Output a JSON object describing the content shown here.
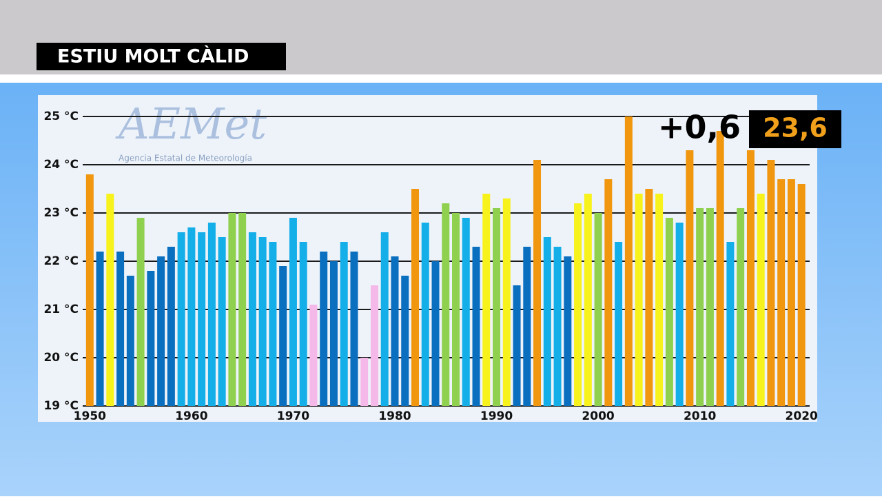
{
  "header": {
    "title": "ESTIU MOLT CÀLID"
  },
  "logo": {
    "name": "AEMet",
    "subtitle": "Agencia Estatal de Meteorología"
  },
  "chart_data": {
    "type": "bar",
    "annotations": [
      "+0,6",
      "23,6"
    ],
    "x": [
      1950,
      1951,
      1952,
      1953,
      1954,
      1955,
      1956,
      1957,
      1958,
      1959,
      1960,
      1961,
      1962,
      1963,
      1964,
      1965,
      1966,
      1967,
      1968,
      1969,
      1970,
      1971,
      1972,
      1973,
      1974,
      1975,
      1976,
      1977,
      1978,
      1979,
      1980,
      1981,
      1982,
      1983,
      1984,
      1985,
      1986,
      1987,
      1988,
      1989,
      1990,
      1991,
      1992,
      1993,
      1994,
      1995,
      1996,
      1997,
      1998,
      1999,
      2000,
      2001,
      2002,
      2003,
      2004,
      2005,
      2006,
      2007,
      2008,
      2009,
      2010,
      2011,
      2012,
      2013,
      2014,
      2015,
      2016,
      2017,
      2018,
      2019,
      2020
    ],
    "values": [
      23.8,
      22.2,
      23.4,
      22.2,
      21.7,
      22.9,
      21.8,
      22.1,
      22.3,
      22.6,
      22.7,
      22.6,
      22.8,
      22.5,
      23.0,
      23.0,
      22.6,
      22.5,
      22.4,
      21.9,
      22.9,
      22.4,
      21.1,
      22.2,
      22.0,
      22.4,
      22.2,
      20.0,
      21.5,
      22.6,
      22.1,
      21.7,
      23.5,
      22.8,
      22.0,
      23.2,
      23.0,
      22.9,
      22.3,
      23.4,
      23.1,
      23.3,
      21.5,
      22.3,
      24.1,
      22.5,
      22.3,
      22.1,
      23.2,
      23.4,
      23.0,
      23.7,
      22.4,
      25.0,
      23.4,
      23.5,
      23.4,
      22.9,
      22.8,
      24.3,
      23.1,
      23.1,
      24.7,
      22.4,
      23.1,
      24.3,
      23.4,
      24.1,
      23.7,
      23.7,
      23.6
    ],
    "colors": [
      "#f0960f",
      "#0b6fbf",
      "#f7f21c",
      "#0b6fbf",
      "#0b6fbf",
      "#8fd14f",
      "#0b6fbf",
      "#0b6fbf",
      "#0b6fbf",
      "#14aee8",
      "#14aee8",
      "#14aee8",
      "#14aee8",
      "#14aee8",
      "#8fd14f",
      "#8fd14f",
      "#14aee8",
      "#14aee8",
      "#14aee8",
      "#0b6fbf",
      "#14aee8",
      "#14aee8",
      "#f4b9e8",
      "#0b6fbf",
      "#0b6fbf",
      "#14aee8",
      "#0b6fbf",
      "#f4b9e8",
      "#f4b9e8",
      "#14aee8",
      "#0b6fbf",
      "#0b6fbf",
      "#f0960f",
      "#14aee8",
      "#0b6fbf",
      "#8fd14f",
      "#8fd14f",
      "#14aee8",
      "#0b6fbf",
      "#f7f21c",
      "#8fd14f",
      "#f7f21c",
      "#0b6fbf",
      "#0b6fbf",
      "#f0960f",
      "#14aee8",
      "#14aee8",
      "#0b6fbf",
      "#f7f21c",
      "#f7f21c",
      "#8fd14f",
      "#f0960f",
      "#14aee8",
      "#f0960f",
      "#f7f21c",
      "#f0960f",
      "#f7f21c",
      "#8fd14f",
      "#14aee8",
      "#f0960f",
      "#8fd14f",
      "#8fd14f",
      "#f0960f",
      "#14aee8",
      "#8fd14f",
      "#f0960f",
      "#f7f21c",
      "#f0960f",
      "#f0960f",
      "#f0960f",
      "#f0960f"
    ],
    "xlim": [
      1949.3,
      2020.8
    ],
    "xticks": [
      1950,
      1960,
      1970,
      1980,
      1990,
      2000,
      2010,
      2020
    ],
    "ylim": [
      19,
      25
    ],
    "yticks": [
      {
        "value": 19,
        "label": "19 °C"
      },
      {
        "value": 20,
        "label": "20 °C"
      },
      {
        "value": 21,
        "label": "21 °C"
      },
      {
        "value": 22,
        "label": "22 °C"
      },
      {
        "value": 23,
        "label": "23 °C"
      },
      {
        "value": 24,
        "label": "24 °C"
      },
      {
        "value": 25,
        "label": "25 °C"
      }
    ],
    "grid": true
  }
}
